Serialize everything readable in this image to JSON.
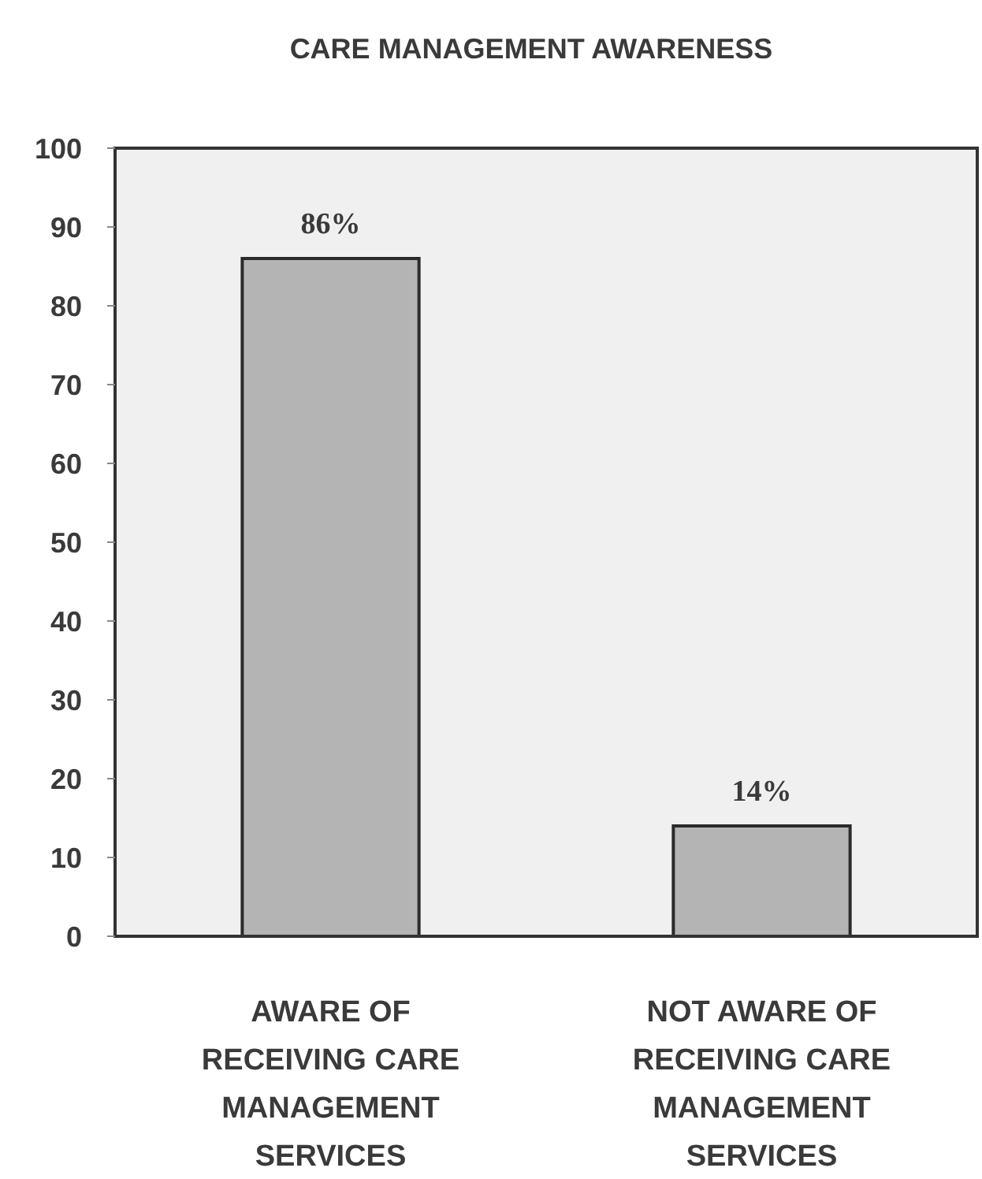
{
  "chart_data": {
    "type": "bar",
    "title": "CARE MANAGEMENT AWARENESS",
    "categories": [
      "AWARE OF RECEIVING CARE MANAGEMENT SERVICES",
      "NOT AWARE OF RECEIVING CARE MANAGEMENT SERVICES"
    ],
    "values": [
      86,
      14
    ],
    "value_labels": [
      "86%",
      "14%"
    ],
    "color": "#b4b4b4",
    "ylim": [
      0,
      100
    ],
    "yticks": [
      0,
      10,
      20,
      30,
      40,
      50,
      60,
      70,
      80,
      90,
      100
    ],
    "grid": false
  }
}
